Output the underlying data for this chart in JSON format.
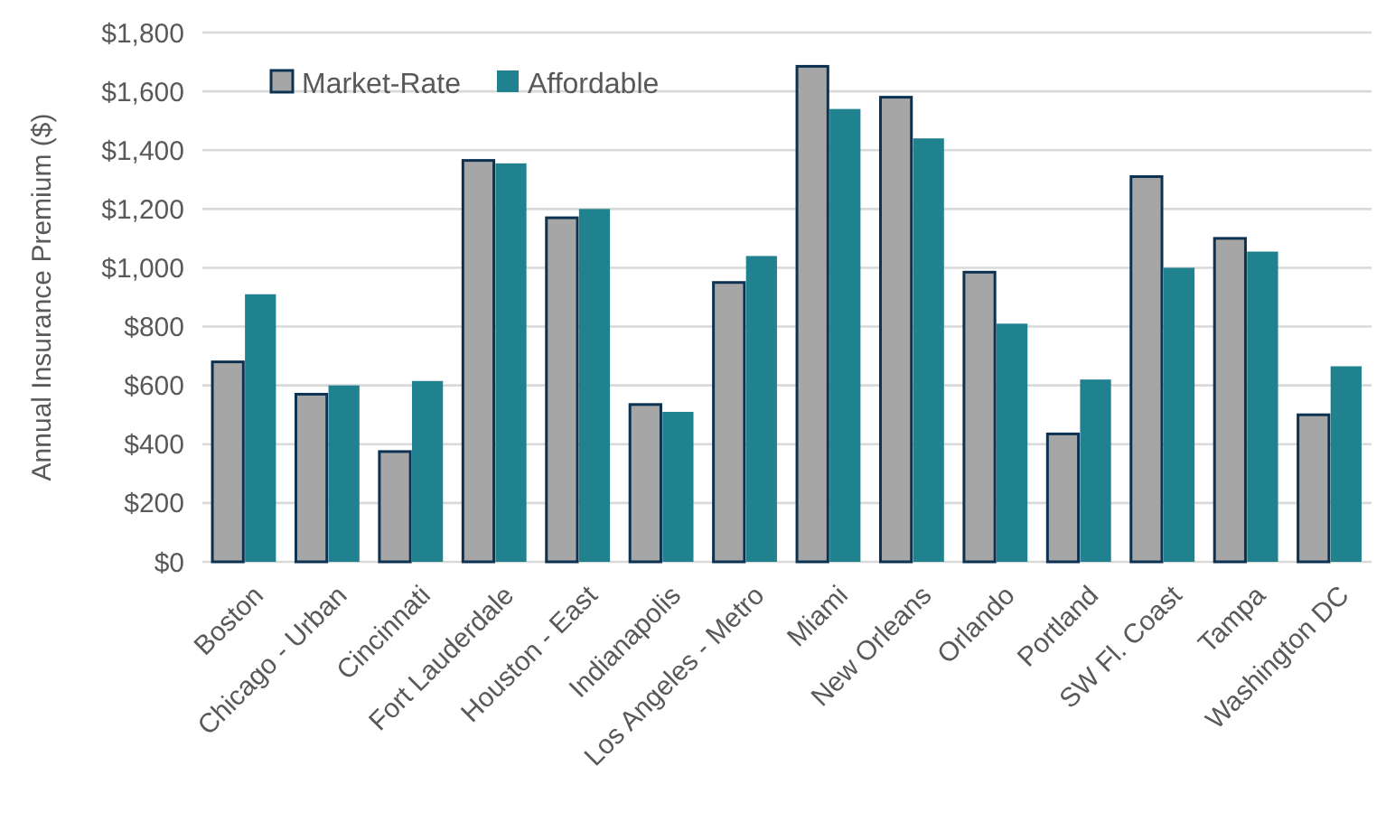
{
  "chart_data": {
    "type": "bar",
    "ylabel": "Annual Insurance Premium ($)",
    "categories": [
      "Boston",
      "Chicago - Urban",
      "Cincinnati",
      "Fort Lauderdale",
      "Houston - East",
      "Indianapolis",
      "Los Angeles - Metro",
      "Miami",
      "New Orleans",
      "Orlando",
      "Portland",
      "SW Fl. Coast",
      "Tampa",
      "Washington DC"
    ],
    "series": [
      {
        "name": "Market-Rate",
        "color": "#a6a6a6",
        "values": [
          680,
          570,
          375,
          1365,
          1170,
          535,
          950,
          1685,
          1580,
          985,
          435,
          1310,
          1100,
          500
        ]
      },
      {
        "name": "Affordable",
        "color": "#21828f",
        "values": [
          910,
          600,
          615,
          1355,
          1200,
          510,
          1040,
          1540,
          1440,
          810,
          620,
          1000,
          1055,
          665
        ]
      }
    ],
    "ylim": [
      0,
      1800
    ],
    "yticks": [
      {
        "value": 0,
        "label": "$0"
      },
      {
        "value": 200,
        "label": "$200"
      },
      {
        "value": 400,
        "label": "$400"
      },
      {
        "value": 600,
        "label": "$600"
      },
      {
        "value": 800,
        "label": "$800"
      },
      {
        "value": 1000,
        "label": "$1,000"
      },
      {
        "value": 1200,
        "label": "$1,200"
      },
      {
        "value": 1400,
        "label": "$1,400"
      },
      {
        "value": 1600,
        "label": "$1,600"
      },
      {
        "value": 1800,
        "label": "$1,800"
      }
    ],
    "grid": "y",
    "legend": "top left"
  }
}
